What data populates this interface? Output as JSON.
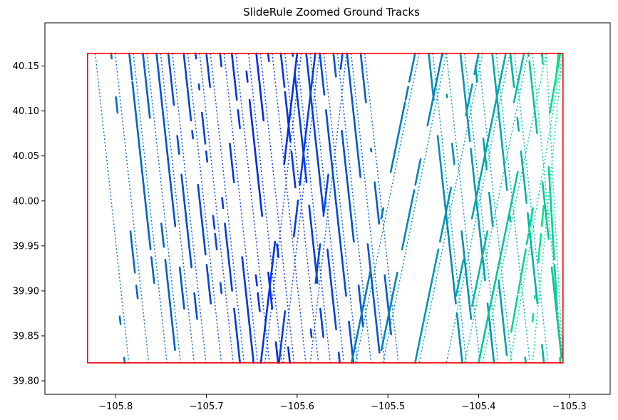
{
  "chart_data": {
    "type": "scatter",
    "title": "SlideRule Zoomed Ground Tracks",
    "xlabel": "",
    "ylabel": "",
    "xlim": [
      -105.878,
      -105.255
    ],
    "ylim": [
      39.785,
      40.198
    ],
    "x_ticks": [
      -105.8,
      -105.7,
      -105.6,
      -105.5,
      -105.4,
      -105.3
    ],
    "x_tick_labels": [
      "−105.8",
      "−105.7",
      "−105.6",
      "−105.5",
      "−105.4",
      "−105.3"
    ],
    "y_ticks": [
      39.8,
      39.85,
      39.9,
      39.95,
      40.0,
      40.05,
      40.1,
      40.15
    ],
    "y_tick_labels": [
      "39.80",
      "39.85",
      "39.90",
      "39.95",
      "40.00",
      "40.05",
      "40.10",
      "40.15"
    ],
    "grid": false,
    "bounding_box": {
      "lon_min": -105.831,
      "lon_max": -105.307,
      "lat_min": 39.82,
      "lat_max": 40.164,
      "color": "#ff0000"
    },
    "colormap": "winter",
    "colormap_stops": [
      "#0000ff",
      "#00ff80"
    ],
    "color_note": "points colored from blue (west) to green (east)",
    "tracks": [
      {
        "lon_top": -105.827,
        "lon_bottom": -105.79,
        "c": 0.45
      },
      {
        "lon_top": -105.805,
        "lon_bottom": -105.768,
        "c": 0.42
      },
      {
        "lon_top": -105.785,
        "lon_bottom": -105.748,
        "c": 0.4
      },
      {
        "lon_top": -105.77,
        "lon_bottom": -105.733,
        "c": 0.38
      },
      {
        "lon_top": -105.755,
        "lon_bottom": -105.718,
        "c": 0.33
      },
      {
        "lon_top": -105.742,
        "lon_bottom": -105.705,
        "c": 0.3
      },
      {
        "lon_top": -105.725,
        "lon_bottom": -105.688,
        "c": 0.28
      },
      {
        "lon_top": -105.712,
        "lon_bottom": -105.675,
        "c": 0.27
      },
      {
        "lon_top": -105.7,
        "lon_bottom": -105.663,
        "c": 0.24
      },
      {
        "lon_top": -105.685,
        "lon_bottom": -105.648,
        "c": 0.22
      },
      {
        "lon_top": -105.672,
        "lon_bottom": -105.635,
        "c": 0.2
      },
      {
        "lon_top": -105.658,
        "lon_bottom": -105.621,
        "c": 0.18
      },
      {
        "lon_top": -105.645,
        "lon_bottom": -105.608,
        "c": 0.16
      },
      {
        "lon_top": -105.632,
        "lon_bottom": -105.595,
        "c": 0.19
      },
      {
        "lon_top": -105.618,
        "lon_bottom": -105.581,
        "c": 0.22
      },
      {
        "lon_top": -105.605,
        "lon_bottom": -105.568,
        "c": 0.24
      },
      {
        "lon_top": -105.59,
        "lon_bottom": -105.553,
        "c": 0.26
      },
      {
        "lon_top": -105.575,
        "lon_bottom": -105.538,
        "c": 0.29
      },
      {
        "lon_top": -105.56,
        "lon_bottom": -105.523,
        "c": 0.32
      },
      {
        "lon_top": -105.545,
        "lon_bottom": -105.508,
        "c": 0.35
      },
      {
        "lon_top": -105.53,
        "lon_bottom": -105.493,
        "c": 0.37
      },
      {
        "lon_top": -105.455,
        "lon_bottom": -105.418,
        "c": 0.55
      },
      {
        "lon_top": -105.44,
        "lon_bottom": -105.403,
        "c": 0.57
      },
      {
        "lon_top": -105.42,
        "lon_bottom": -105.383,
        "c": 0.6
      },
      {
        "lon_top": -105.405,
        "lon_bottom": -105.368,
        "c": 0.63
      },
      {
        "lon_top": -105.385,
        "lon_bottom": -105.348,
        "c": 0.66
      },
      {
        "lon_top": -105.365,
        "lon_bottom": -105.328,
        "c": 0.7
      },
      {
        "lon_top": -105.345,
        "lon_bottom": -105.308,
        "c": 0.78
      },
      {
        "lon_top": -105.33,
        "lon_bottom": -105.31,
        "c": 0.82
      },
      {
        "lon_top": -105.6,
        "lon_bottom": -105.64,
        "c": 0.2
      },
      {
        "lon_top": -105.58,
        "lon_bottom": -105.62,
        "c": 0.25
      },
      {
        "lon_top": -105.55,
        "lon_bottom": -105.59,
        "c": 0.3
      },
      {
        "lon_top": -105.47,
        "lon_bottom": -105.54,
        "c": 0.48
      },
      {
        "lon_top": -105.44,
        "lon_bottom": -105.51,
        "c": 0.52
      },
      {
        "lon_top": -105.4,
        "lon_bottom": -105.47,
        "c": 0.6
      },
      {
        "lon_top": -105.37,
        "lon_bottom": -105.44,
        "c": 0.66
      },
      {
        "lon_top": -105.33,
        "lon_bottom": -105.4,
        "c": 0.78
      },
      {
        "lon_top": -105.31,
        "lon_bottom": -105.37,
        "c": 0.85
      },
      {
        "lon_top": -105.312,
        "lon_bottom": -105.345,
        "c": 0.9
      },
      {
        "lon_top": -105.35,
        "lon_bottom": -105.42,
        "c": 0.74
      }
    ]
  }
}
